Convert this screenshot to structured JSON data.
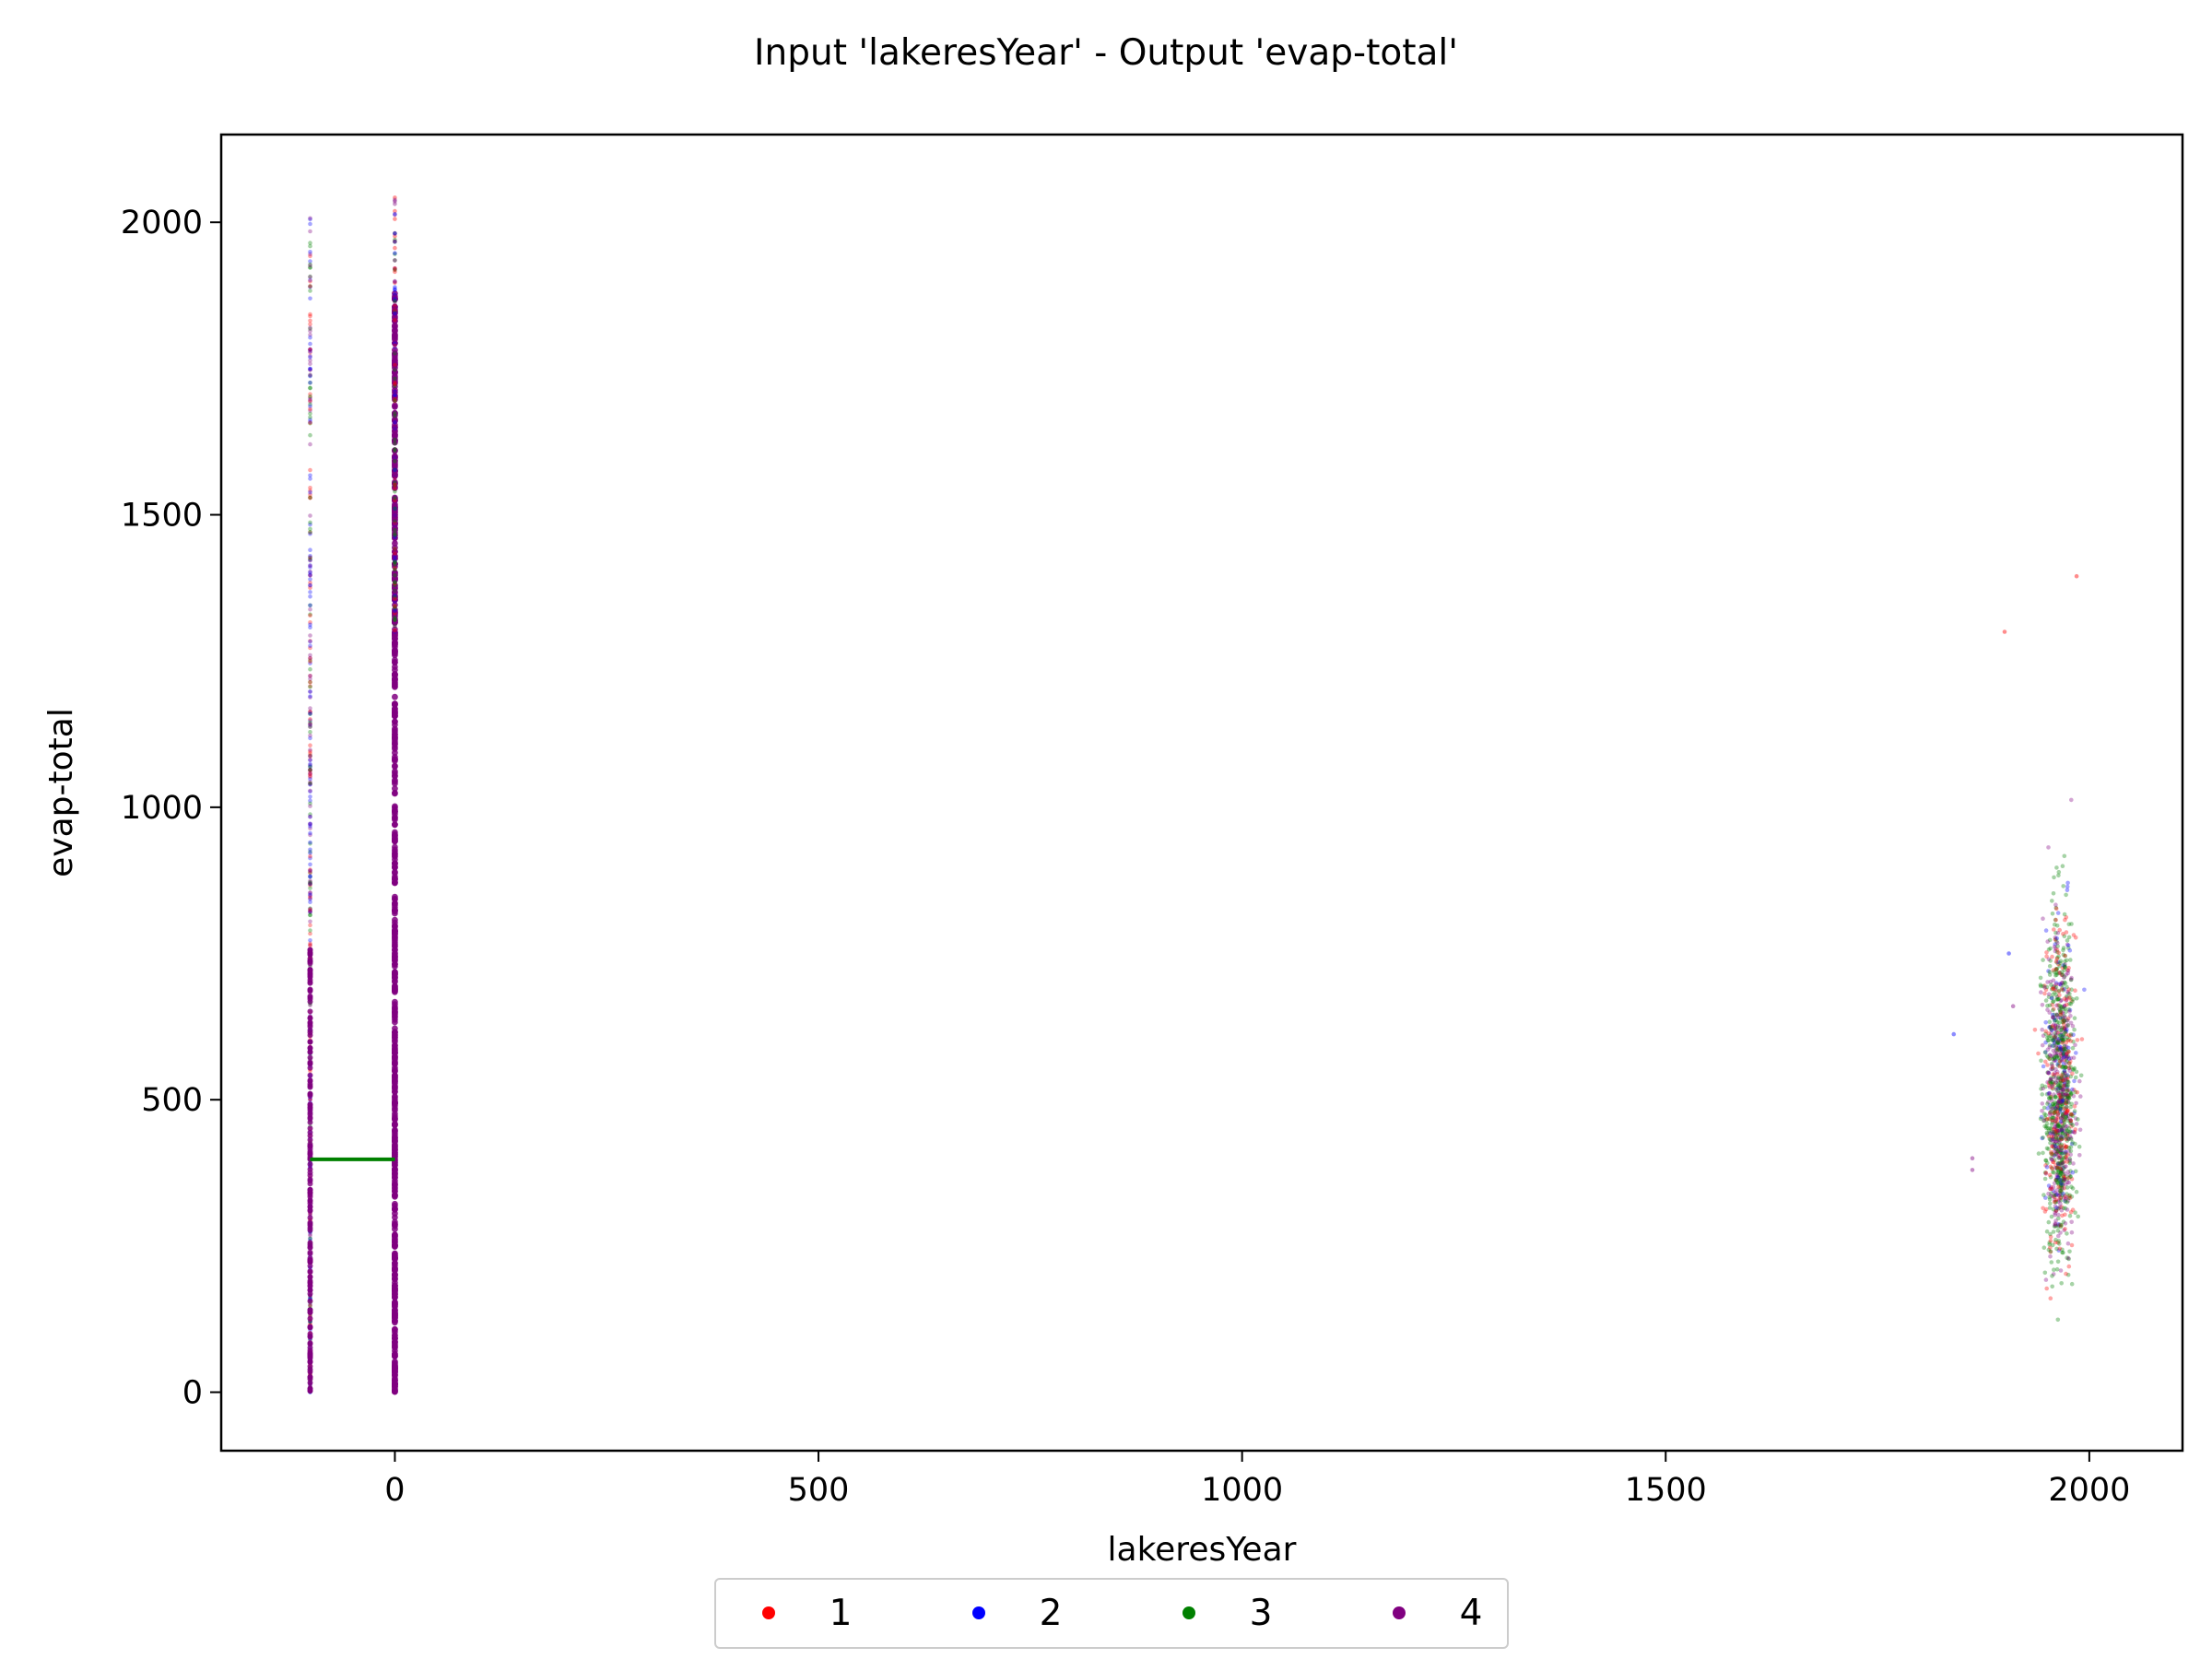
{
  "chart_data": {
    "type": "scatter",
    "title": "Input 'lakeresYear' - Output 'evap-total'",
    "xlabel": "lakeresYear",
    "ylabel": "evap-total",
    "xlim": [
      -205,
      2110
    ],
    "ylim": [
      -100,
      2150
    ],
    "xticks": [
      0,
      500,
      1000,
      1500,
      2000
    ],
    "yticks": [
      0,
      500,
      1000,
      1500,
      2000
    ],
    "grid": false,
    "legend_position": "below-center",
    "series": [
      {
        "name": "1",
        "color": "#ff0000"
      },
      {
        "name": "2",
        "color": "#0000ff"
      },
      {
        "name": "3",
        "color": "#008000"
      },
      {
        "name": "4",
        "color": "#800080"
      }
    ],
    "clusters": [
      {
        "x": -100,
        "y_range": [
          0,
          2020
        ],
        "description": "dense column of points at x = -100"
      },
      {
        "x": 0,
        "y_range": [
          0,
          2050
        ],
        "description": "dense column of points at x = 0"
      },
      {
        "x_range": [
          1840,
          2000
        ],
        "x_center": 1965,
        "y_range": [
          10,
          1490
        ],
        "y_center": 430,
        "description": "scatter cloud of points around x = 1965"
      }
    ],
    "segment": {
      "series": "3",
      "x": [
        -100,
        0
      ],
      "y": 398
    }
  }
}
